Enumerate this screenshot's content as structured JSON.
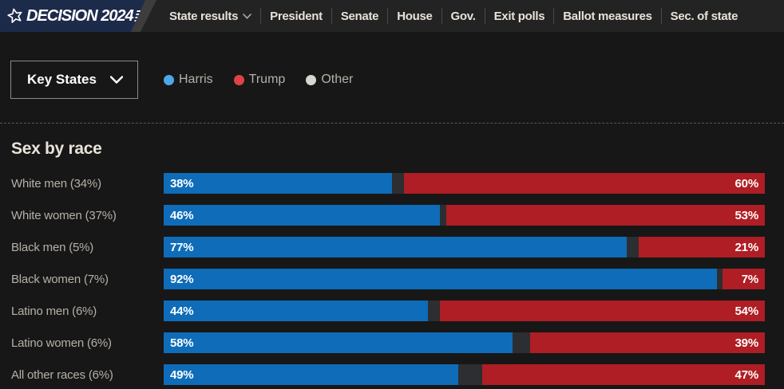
{
  "nav": {
    "logo_text": "DECISION 2024",
    "items": [
      {
        "label": "State results",
        "has_dropdown": true
      },
      {
        "label": "President",
        "has_dropdown": false
      },
      {
        "label": "Senate",
        "has_dropdown": false
      },
      {
        "label": "House",
        "has_dropdown": false
      },
      {
        "label": "Gov.",
        "has_dropdown": false
      },
      {
        "label": "Exit polls",
        "has_dropdown": false
      },
      {
        "label": "Ballot measures",
        "has_dropdown": false
      },
      {
        "label": "Sec. of state",
        "has_dropdown": false
      }
    ]
  },
  "controls": {
    "key_states_label": "Key States"
  },
  "legend": {
    "items": [
      {
        "label": "Harris",
        "color": "#4da7e8"
      },
      {
        "label": "Trump",
        "color": "#e04345"
      },
      {
        "label": "Other",
        "color": "#d9d6d1"
      }
    ]
  },
  "section_title": "Sex by race",
  "chart_data": {
    "type": "bar",
    "orientation": "horizontal",
    "stacked": true,
    "title": "Sex by race",
    "categories": [
      "White men (34%)",
      "White women (37%)",
      "Black men (5%)",
      "Black women (7%)",
      "Latino men (6%)",
      "Latino women (6%)",
      "All other races (6%)"
    ],
    "series": [
      {
        "name": "Harris",
        "color": "#0e6cb8",
        "values": [
          38,
          46,
          77,
          92,
          44,
          58,
          49
        ]
      },
      {
        "name": "Other",
        "color": "#2d2e31",
        "values": [
          2,
          1,
          2,
          1,
          2,
          3,
          4
        ]
      },
      {
        "name": "Trump",
        "color": "#ae1e24",
        "values": [
          60,
          53,
          21,
          7,
          54,
          39,
          47
        ]
      }
    ],
    "value_suffix": "%",
    "xlim": [
      0,
      100
    ],
    "legend_position": "top"
  },
  "colors": {
    "nav_background": "#232323",
    "page_background": "#171717",
    "logo_plate": "#1d2b4a",
    "harris_bar": "#0e6cb8",
    "trump_bar": "#ae1e24",
    "other_segment": "#2d2e31"
  }
}
